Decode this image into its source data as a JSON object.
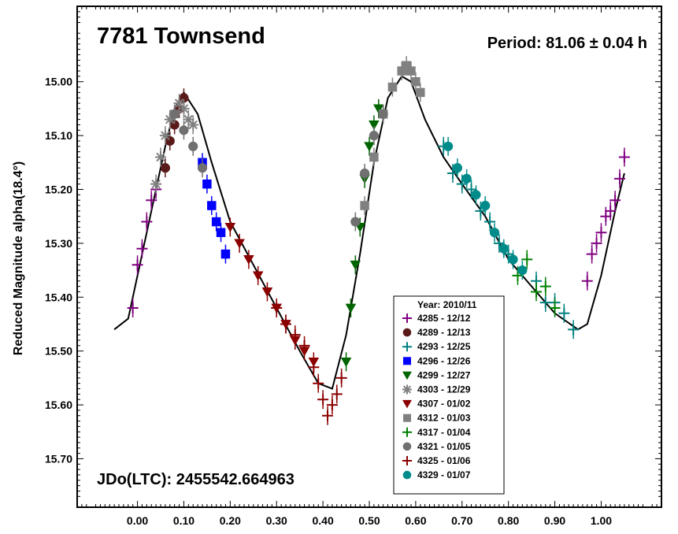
{
  "chart_data": {
    "type": "scatter",
    "title": "7781 Townsend",
    "period_label": "Period: 81.06 ± 0.04 h",
    "epoch_label": "JDo(LTC): 2455542.664963",
    "xlabel": "",
    "ylabel": "Reduced Magnitude alpha(18.4°)",
    "xlim": [
      -0.13,
      1.13
    ],
    "ylim": [
      15.79,
      14.86
    ],
    "y_inverted": true,
    "x_ticks": [
      "0.00",
      "0.10",
      "0.20",
      "0.30",
      "0.40",
      "0.50",
      "0.60",
      "0.70",
      "0.80",
      "0.90",
      "1.00"
    ],
    "y_ticks": [
      "15.00",
      "15.10",
      "15.20",
      "15.30",
      "15.40",
      "15.50",
      "15.60",
      "15.70"
    ],
    "legend_title": "Year: 2010/11",
    "legend_position": "bottom-center",
    "fit_curve": {
      "x": [
        -0.05,
        -0.02,
        0.0,
        0.03,
        0.06,
        0.08,
        0.1,
        0.13,
        0.16,
        0.2,
        0.25,
        0.3,
        0.35,
        0.39,
        0.42,
        0.45,
        0.48,
        0.51,
        0.54,
        0.57,
        0.59,
        0.62,
        0.66,
        0.7,
        0.75,
        0.8,
        0.85,
        0.9,
        0.95,
        0.97,
        1.0,
        1.03,
        1.05
      ],
      "y": [
        15.46,
        15.44,
        15.36,
        15.24,
        15.12,
        15.05,
        15.02,
        15.06,
        15.15,
        15.26,
        15.34,
        15.42,
        15.5,
        15.56,
        15.57,
        15.47,
        15.32,
        15.15,
        15.03,
        14.99,
        15.0,
        15.07,
        15.14,
        15.19,
        15.25,
        15.33,
        15.38,
        15.43,
        15.46,
        15.45,
        15.36,
        15.24,
        15.17
      ]
    },
    "series": [
      {
        "name": "4285 - 12/12",
        "marker": "plus",
        "color": "#800080",
        "x": [
          -0.01,
          0.0,
          0.01,
          0.02,
          0.03,
          0.04,
          0.97,
          0.98,
          0.99,
          1.0,
          1.01,
          1.02,
          1.03,
          1.04,
          1.05
        ],
        "y": [
          15.42,
          15.34,
          15.31,
          15.26,
          15.22,
          15.2,
          15.37,
          15.32,
          15.3,
          15.28,
          15.25,
          15.24,
          15.22,
          15.18,
          15.14
        ]
      },
      {
        "name": "4289 - 12/13",
        "marker": "circle",
        "color": "#5a1a1a",
        "x": [
          0.06,
          0.07,
          0.08,
          0.09,
          0.1
        ],
        "y": [
          15.16,
          15.11,
          15.08,
          15.05,
          15.03
        ]
      },
      {
        "name": "4293 - 12/25",
        "marker": "plus",
        "color": "#008080",
        "x": [
          0.66,
          0.68,
          0.7,
          0.72,
          0.74,
          0.76,
          0.78,
          0.8,
          0.86,
          0.88,
          0.9,
          0.92,
          0.94
        ],
        "y": [
          15.12,
          15.17,
          15.19,
          15.2,
          15.24,
          15.26,
          15.3,
          15.32,
          15.37,
          15.41,
          15.41,
          15.43,
          15.46
        ]
      },
      {
        "name": "4296 - 12/26",
        "marker": "square",
        "color": "#0000ff",
        "x": [
          0.14,
          0.15,
          0.16,
          0.17,
          0.18,
          0.19
        ],
        "y": [
          15.15,
          15.19,
          15.23,
          15.26,
          15.28,
          15.32
        ]
      },
      {
        "name": "4299 - 12/27",
        "marker": "triangle-down",
        "color": "#006400",
        "x": [
          0.45,
          0.46,
          0.47,
          0.48,
          0.49,
          0.5,
          0.51,
          0.52
        ],
        "y": [
          15.52,
          15.42,
          15.34,
          15.27,
          15.18,
          15.12,
          15.08,
          15.05
        ]
      },
      {
        "name": "4303 - 12/29",
        "marker": "asterisk",
        "color": "#808080",
        "x": [
          0.04,
          0.05,
          0.06,
          0.07,
          0.08,
          0.09,
          0.1,
          0.11,
          0.12
        ],
        "y": [
          15.19,
          15.14,
          15.1,
          15.07,
          15.06,
          15.04,
          15.05,
          15.07,
          15.08
        ]
      },
      {
        "name": "4307 - 01/02",
        "marker": "triangle-down",
        "color": "#8b0000",
        "x": [
          0.2,
          0.22,
          0.24,
          0.26,
          0.28,
          0.3,
          0.32,
          0.34,
          0.36,
          0.38
        ],
        "y": [
          15.27,
          15.3,
          15.33,
          15.36,
          15.39,
          15.42,
          15.45,
          15.48,
          15.5,
          15.52
        ]
      },
      {
        "name": "4312 - 01/03",
        "marker": "square",
        "color": "#808080",
        "x": [
          0.49,
          0.51,
          0.53,
          0.55,
          0.57,
          0.58,
          0.59,
          0.6,
          0.61
        ],
        "y": [
          15.23,
          15.14,
          15.06,
          15.01,
          14.98,
          14.97,
          14.98,
          15.0,
          15.02
        ]
      },
      {
        "name": "4317 - 01/04",
        "marker": "plus",
        "color": "#008000",
        "x": [
          0.82,
          0.84,
          0.86,
          0.88,
          0.9
        ],
        "y": [
          15.36,
          15.33,
          15.39,
          15.38,
          15.42
        ]
      },
      {
        "name": "4321 - 01/05",
        "marker": "circle",
        "color": "#707070",
        "x": [
          0.08,
          0.1,
          0.12,
          0.14,
          0.47,
          0.49,
          0.51,
          0.53
        ],
        "y": [
          15.06,
          15.09,
          15.12,
          15.16,
          15.26,
          15.17,
          15.1,
          15.06
        ]
      },
      {
        "name": "4325 - 01/06",
        "marker": "plus",
        "color": "#8b0000",
        "x": [
          0.3,
          0.32,
          0.34,
          0.36,
          0.38,
          0.39,
          0.4,
          0.41,
          0.42,
          0.43,
          0.44
        ],
        "y": [
          15.42,
          15.45,
          15.47,
          15.49,
          15.53,
          15.56,
          15.59,
          15.62,
          15.6,
          15.58,
          15.55
        ]
      },
      {
        "name": "4329 - 01/07",
        "marker": "circle",
        "color": "#008b8b",
        "x": [
          0.67,
          0.69,
          0.71,
          0.73,
          0.75,
          0.77,
          0.79,
          0.81,
          0.83
        ],
        "y": [
          15.12,
          15.16,
          15.18,
          15.21,
          15.23,
          15.28,
          15.31,
          15.33,
          15.35
        ]
      }
    ]
  }
}
